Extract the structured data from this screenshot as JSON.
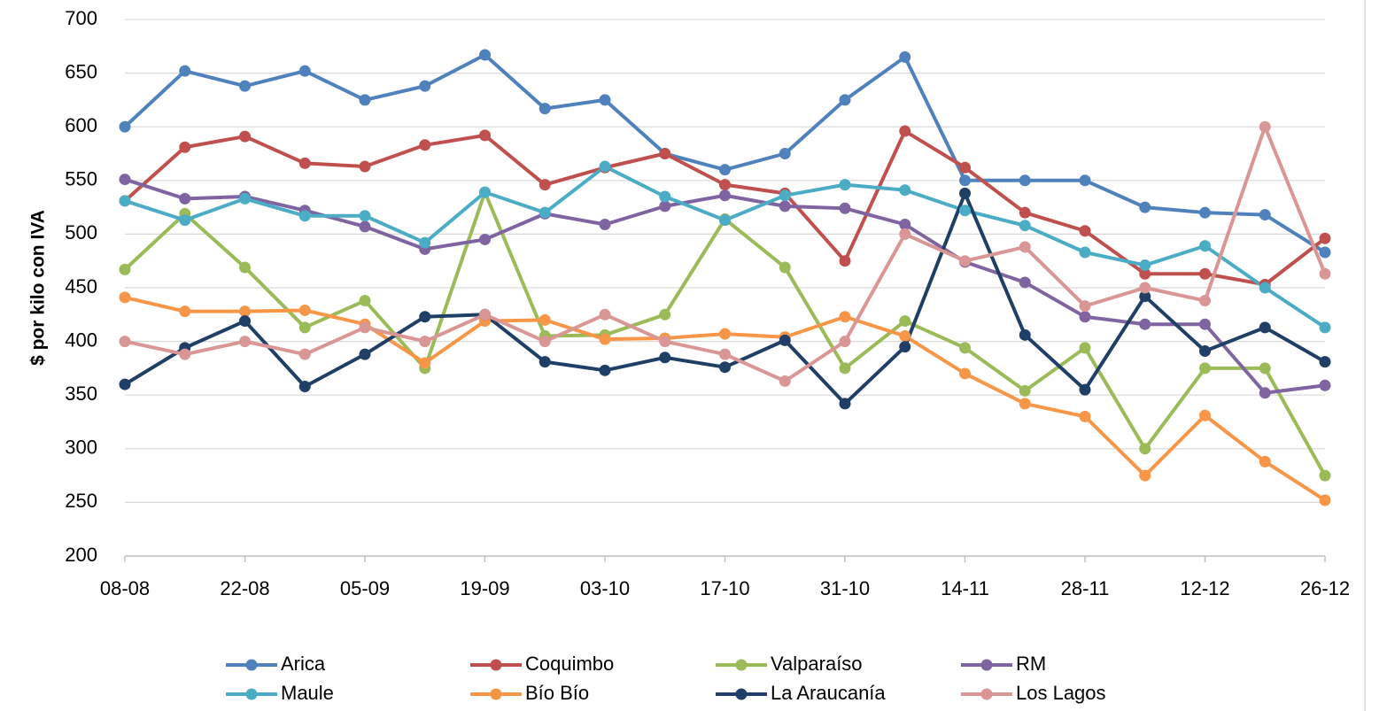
{
  "chart_data": {
    "type": "line",
    "y_label": "$ por kilo con IVA",
    "categories": [
      "08-08",
      null,
      "22-08",
      null,
      "05-09",
      null,
      "19-09",
      null,
      "03-10",
      null,
      "17-10",
      null,
      "31-10",
      null,
      "14-11",
      null,
      "28-11",
      null,
      "12-12",
      null,
      "26-12"
    ],
    "ylim": [
      200,
      700
    ],
    "yticks": [
      200,
      250,
      300,
      350,
      400,
      450,
      500,
      550,
      600,
      650,
      700
    ],
    "grid": true,
    "legend": "bottom",
    "series": [
      {
        "name": "Arica",
        "color": "#4f81bd",
        "values": [
          600,
          652,
          638,
          652,
          625,
          638,
          667,
          617,
          625,
          575,
          560,
          575,
          625,
          665,
          550,
          550,
          550,
          525,
          520,
          518,
          483
        ]
      },
      {
        "name": "Coquimbo",
        "color": "#c0504d",
        "values": [
          531,
          581,
          591,
          566,
          563,
          583,
          592,
          546,
          562,
          575,
          546,
          538,
          475,
          596,
          562,
          520,
          503,
          463,
          463,
          453,
          496
        ]
      },
      {
        "name": "Valparaíso",
        "color": "#9bbb59",
        "values": [
          467,
          519,
          469,
          413,
          438,
          375,
          539,
          405,
          406,
          425,
          514,
          469,
          375,
          419,
          394,
          354,
          394,
          300,
          375,
          375,
          275
        ]
      },
      {
        "name": "RM",
        "color": "#8064a2",
        "values": [
          551,
          533,
          535,
          522,
          507,
          486,
          495,
          519,
          509,
          526,
          536,
          526,
          524,
          509,
          474,
          455,
          423,
          416,
          416,
          352,
          359
        ]
      },
      {
        "name": "Maule",
        "color": "#4bacc6",
        "values": [
          531,
          513,
          533,
          517,
          517,
          492,
          539,
          520,
          563,
          535,
          513,
          536,
          546,
          541,
          522,
          508,
          483,
          471,
          489,
          450,
          413
        ]
      },
      {
        "name": "Bío Bío",
        "color": "#f79646",
        "values": [
          441,
          428,
          428,
          429,
          416,
          380,
          419,
          420,
          402,
          403,
          407,
          404,
          423,
          405,
          370,
          342,
          330,
          275,
          331,
          288,
          252
        ]
      },
      {
        "name": "La Araucanía",
        "color": "#1f3f66",
        "values": [
          360,
          394,
          419,
          358,
          388,
          423,
          425,
          381,
          373,
          385,
          376,
          401,
          342,
          395,
          538,
          406,
          355,
          442,
          391,
          413,
          381
        ]
      },
      {
        "name": "Los Lagos",
        "color": "#d99694",
        "values": [
          400,
          388,
          400,
          388,
          413,
          400,
          425,
          400,
          425,
          400,
          388,
          363,
          400,
          500,
          475,
          488,
          433,
          450,
          438,
          600,
          463
        ]
      }
    ]
  }
}
